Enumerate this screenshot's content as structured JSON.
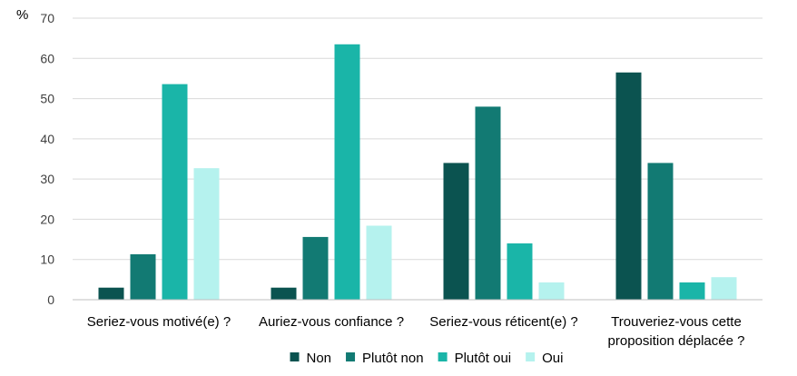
{
  "chart_data": {
    "type": "bar",
    "y_unit": "%",
    "categories": [
      [
        "Seriez-vous motivé(e) ?"
      ],
      [
        "Auriez-vous confiance ?"
      ],
      [
        "Seriez-vous réticent(e) ?"
      ],
      [
        "Trouveriez-vous cette",
        "proposition déplacée ?"
      ]
    ],
    "series": [
      {
        "name": "Non",
        "color": "#0b5350",
        "values": [
          3,
          3,
          34,
          56.5
        ]
      },
      {
        "name": "Plutôt non",
        "color": "#127a73",
        "values": [
          11.3,
          15.6,
          48,
          34
        ]
      },
      {
        "name": "Plutôt oui",
        "color": "#1ab5a8",
        "values": [
          53.6,
          63.5,
          14,
          4.3
        ]
      },
      {
        "name": "Oui",
        "color": "#b5f2ee",
        "values": [
          32.7,
          18.4,
          4.3,
          5.6
        ]
      }
    ],
    "ylim": [
      0,
      70
    ],
    "yticks": [
      0,
      10,
      20,
      30,
      40,
      50,
      60,
      70
    ],
    "grid": true,
    "legend_position": "bottom"
  }
}
